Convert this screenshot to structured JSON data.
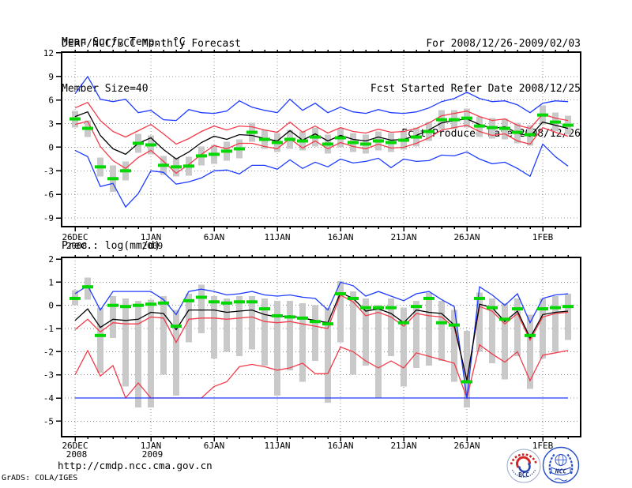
{
  "header": {
    "title": "DERF/NCC/BCC Monthly Forecast",
    "member_size": "Member Size=40",
    "for_range": "For 2008/12/26-2009/02/03",
    "fcst_started": "Fcst Started Refer Date 2008/12/25",
    "fcst_produced": "Fcst Produced Date 2008/12/26"
  },
  "footer": {
    "url": "http://cmdp.ncc.cma.gov.cn",
    "grads_credit": "GrADS: COLA/IGES",
    "logos": {
      "bcc_text": "BCC",
      "ncc_text": "NCC"
    }
  },
  "colors": {
    "max_min": "#1e3cff",
    "percentile": "#f23c4a",
    "ensemble_mean": "#000000",
    "observation": "#00d800",
    "spread_bar": "#c9c9c9",
    "grid": "#909090",
    "frame": "#000000",
    "logo_navy": "#1a2f7a",
    "logo_blue": "#2a50c8",
    "logo_red": "#d42525"
  },
  "chart_data": [
    {
      "type": "line",
      "title": "Mean Surf. Temp.: °C",
      "ylabel": "°C",
      "x_range": [
        "2008/12/26",
        "2009/02/03"
      ],
      "n_days": 40,
      "ylim": [
        -10.1,
        12.1
      ],
      "yticks": [
        12,
        9,
        6,
        3,
        0,
        -3,
        -6,
        -9
      ],
      "xticks": [
        {
          "label": "26DEC",
          "sub": "2008",
          "day": 0
        },
        {
          "label": "1JAN",
          "sub": "2009",
          "day": 6
        },
        {
          "label": "6JAN",
          "day": 11
        },
        {
          "label": "11JAN",
          "day": 16
        },
        {
          "label": "16JAN",
          "day": 21
        },
        {
          "label": "21JAN",
          "day": 26
        },
        {
          "label": "26JAN",
          "day": 31
        },
        {
          "label": "1FEB",
          "day": 37
        }
      ],
      "series": {
        "blue_max": [
          6.8,
          9.0,
          6.1,
          5.8,
          6.1,
          4.4,
          4.7,
          3.5,
          3.4,
          4.8,
          4.4,
          4.3,
          4.6,
          5.9,
          5.1,
          4.7,
          4.4,
          6.1,
          4.7,
          5.6,
          4.4,
          5.1,
          4.5,
          4.3,
          4.8,
          4.4,
          4.3,
          4.5,
          5.0,
          5.8,
          6.2,
          7.0,
          6.2,
          5.8,
          5.9,
          5.4,
          4.4,
          5.6,
          5.9,
          5.8
        ],
        "red_upper": [
          5.0,
          5.7,
          3.4,
          2.0,
          1.3,
          2.1,
          2.9,
          1.7,
          0.4,
          1.1,
          2.0,
          2.7,
          2.2,
          2.7,
          2.6,
          2.2,
          1.9,
          3.2,
          1.9,
          2.7,
          1.8,
          2.5,
          2.0,
          1.8,
          2.3,
          1.9,
          2.0,
          2.4,
          3.1,
          4.0,
          4.3,
          4.6,
          3.9,
          3.4,
          3.6,
          2.8,
          2.4,
          4.2,
          3.7,
          3.4
        ],
        "black_mean": [
          3.9,
          4.5,
          1.5,
          -0.2,
          -0.9,
          0.5,
          1.2,
          -0.3,
          -1.5,
          -0.6,
          0.6,
          1.4,
          1.0,
          1.6,
          1.5,
          1.1,
          0.8,
          2.1,
          0.9,
          1.7,
          0.8,
          1.5,
          1.0,
          0.8,
          1.3,
          0.9,
          1.0,
          1.5,
          2.2,
          3.1,
          3.4,
          3.6,
          2.9,
          2.4,
          2.6,
          1.8,
          1.4,
          3.2,
          2.8,
          2.4
        ],
        "red_lower": [
          2.9,
          3.3,
          0.1,
          -1.7,
          -2.7,
          -1.3,
          -0.4,
          -1.8,
          -3.3,
          -2.2,
          -0.9,
          0.2,
          -0.2,
          0.5,
          0.5,
          0.1,
          -0.2,
          1.1,
          -0.1,
          0.8,
          -0.2,
          0.6,
          0.1,
          -0.2,
          0.4,
          -0.1,
          0.0,
          0.5,
          1.2,
          2.2,
          2.5,
          2.8,
          2.0,
          1.5,
          1.7,
          0.8,
          0.4,
          2.5,
          1.9,
          1.4
        ],
        "blue_min": [
          -0.4,
          -1.2,
          -5.0,
          -4.6,
          -7.6,
          -5.9,
          -3.0,
          -3.2,
          -4.7,
          -4.4,
          -3.9,
          -3.0,
          -2.9,
          -3.4,
          -2.3,
          -2.3,
          -2.8,
          -1.6,
          -2.7,
          -1.9,
          -2.5,
          -1.5,
          -2.0,
          -1.8,
          -1.4,
          -2.6,
          -1.5,
          -1.8,
          -1.7,
          -1.0,
          -1.1,
          -0.6,
          -1.5,
          -2.1,
          -1.9,
          -2.7,
          -3.7,
          0.4,
          -1.2,
          -2.4
        ]
      },
      "observation": [
        3.6,
        2.4,
        -2.5,
        -4.0,
        -3.0,
        0.5,
        0.3,
        -2.3,
        -2.5,
        -2.4,
        -1.1,
        -0.9,
        -0.5,
        -0.2,
        1.9,
        1.0,
        0.6,
        1.0,
        0.8,
        1.3,
        0.4,
        1.2,
        0.6,
        0.4,
        0.8,
        0.6,
        0.9,
        1.3,
        2.0,
        3.5,
        3.5,
        3.7,
        2.7,
        2.5,
        2.4,
        1.9,
        1.6,
        4.1,
        3.2,
        2.8
      ],
      "spread_bars": {
        "top": [
          4.6,
          3.4,
          -1.3,
          -2.3,
          -1.8,
          1.7,
          1.5,
          -1.1,
          -1.3,
          -1.2,
          0.1,
          0.3,
          0.7,
          1.0,
          3.1,
          2.2,
          1.8,
          2.2,
          2.0,
          2.5,
          1.6,
          2.4,
          1.8,
          1.6,
          2.0,
          1.8,
          2.1,
          2.5,
          3.2,
          4.7,
          4.7,
          4.9,
          3.9,
          3.7,
          3.6,
          3.1,
          2.8,
          5.3,
          4.4,
          4.0
        ],
        "bottom": [
          2.5,
          1.3,
          -3.7,
          -5.7,
          -4.2,
          -0.7,
          -0.9,
          -3.5,
          -3.7,
          -3.6,
          -2.3,
          -2.1,
          -1.7,
          -1.4,
          0.7,
          -0.2,
          -0.6,
          -0.2,
          -0.4,
          0.1,
          -0.8,
          0.0,
          -0.6,
          -0.8,
          -0.4,
          -0.6,
          -0.3,
          0.1,
          0.8,
          2.3,
          2.3,
          2.5,
          1.3,
          1.1,
          1.0,
          0.5,
          0.2,
          2.9,
          2.0,
          1.6
        ]
      }
    },
    {
      "type": "line",
      "title": "Prec.: log(mm/d)",
      "ylabel": "log(mm/d)",
      "x_range": [
        "2008/12/26",
        "2009/02/03"
      ],
      "n_days": 40,
      "ylim": [
        -5.67,
        2.07
      ],
      "yticks": [
        2,
        1,
        0,
        -1,
        -2,
        -3,
        -4,
        -5
      ],
      "xticks": [
        {
          "label": "26DEC",
          "sub": "2008",
          "day": 0
        },
        {
          "label": "1JAN",
          "sub": "2009",
          "day": 6
        },
        {
          "label": "6JAN",
          "day": 11
        },
        {
          "label": "11JAN",
          "day": 16
        },
        {
          "label": "16JAN",
          "day": 21
        },
        {
          "label": "21JAN",
          "day": 26
        },
        {
          "label": "26JAN",
          "day": 31
        },
        {
          "label": "1FEB",
          "day": 37
        }
      ],
      "series": {
        "blue_max": [
          0.5,
          0.85,
          -0.2,
          0.6,
          0.6,
          0.6,
          0.6,
          0.25,
          -0.4,
          0.6,
          0.7,
          0.6,
          0.45,
          0.5,
          0.6,
          0.45,
          0.4,
          0.45,
          0.35,
          0.3,
          -0.2,
          1.0,
          0.85,
          0.4,
          0.6,
          0.4,
          0.2,
          0.5,
          0.6,
          0.25,
          -0.05,
          -4.0,
          0.8,
          0.45,
          0.0,
          0.5,
          -0.75,
          0.3,
          0.45,
          0.5
        ],
        "black_mean": [
          -0.65,
          -0.15,
          -0.95,
          -0.6,
          -0.65,
          -0.6,
          -0.3,
          -0.35,
          -1.05,
          -0.2,
          -0.2,
          -0.2,
          -0.3,
          -0.25,
          -0.2,
          -0.4,
          -0.5,
          -0.45,
          -0.55,
          -0.65,
          -0.75,
          0.55,
          0.3,
          -0.25,
          -0.15,
          -0.35,
          -0.75,
          -0.2,
          -0.3,
          -0.35,
          -0.85,
          -3.25,
          0.05,
          -0.1,
          -0.7,
          -0.25,
          -1.4,
          -0.4,
          -0.3,
          -0.25
        ],
        "red_upper": [
          -1.05,
          -0.6,
          -1.15,
          -0.75,
          -0.8,
          -0.8,
          -0.5,
          -0.55,
          -1.6,
          -0.6,
          -0.55,
          -0.55,
          -0.6,
          -0.55,
          -0.5,
          -0.7,
          -0.75,
          -0.7,
          -0.8,
          -0.9,
          -1.0,
          0.45,
          0.15,
          -0.45,
          -0.3,
          -0.5,
          -0.9,
          -0.35,
          -0.45,
          -0.5,
          -0.95,
          -3.2,
          -0.05,
          -0.25,
          -0.8,
          -0.35,
          -1.5,
          -0.5,
          -0.35,
          -0.3
        ],
        "red_lower": [
          -3.0,
          -1.95,
          -3.05,
          -2.6,
          -4.0,
          -3.35,
          -4.0,
          -4.0,
          -4.0,
          -4.0,
          -4.0,
          -3.5,
          -3.3,
          -2.65,
          -2.55,
          -2.65,
          -2.8,
          -2.7,
          -2.5,
          -2.95,
          -2.95,
          -1.8,
          -2.0,
          -2.4,
          -2.7,
          -2.4,
          -2.7,
          -2.05,
          -2.2,
          -2.35,
          -2.5,
          -4.0,
          -1.7,
          -2.1,
          -2.45,
          -2.0,
          -3.25,
          -2.15,
          -2.05,
          -1.95
        ],
        "blue_min": [
          -4.0,
          -4.0,
          -4.0,
          -4.0,
          -4.0,
          -4.0,
          -4.0,
          -4.0,
          -4.0,
          -4.0,
          -4.0,
          -4.0,
          -4.0,
          -4.0,
          -4.0,
          -4.0,
          -4.0,
          -4.0,
          -4.0,
          -4.0,
          -4.0,
          -4.0,
          -4.0,
          -4.0,
          -4.0,
          -4.0,
          -4.0,
          -4.0,
          -4.0,
          -4.0,
          -4.0,
          -4.0,
          -4.0,
          -4.0,
          -4.0,
          -4.0,
          -4.0,
          -4.0,
          -4.0,
          -4.0
        ]
      },
      "observation": [
        0.3,
        0.8,
        -1.3,
        0.0,
        -0.05,
        0.0,
        0.05,
        0.1,
        -0.9,
        0.2,
        0.35,
        0.15,
        0.1,
        0.15,
        0.15,
        -0.15,
        -0.45,
        -0.5,
        -0.55,
        -0.7,
        -0.8,
        0.5,
        0.3,
        -0.1,
        -0.1,
        -0.1,
        -0.75,
        -0.05,
        0.3,
        -0.75,
        -0.85,
        -3.3,
        0.3,
        -0.1,
        -0.6,
        -0.15,
        -1.3,
        -0.15,
        -0.1,
        -0.05
      ],
      "spread_bars": {
        "top": [
          0.65,
          1.2,
          -0.1,
          0.4,
          0.3,
          0.2,
          0.25,
          0.4,
          -0.2,
          0.5,
          0.9,
          0.4,
          0.3,
          0.4,
          0.4,
          0.3,
          0.2,
          0.2,
          0.1,
          0.0,
          -0.1,
          1.05,
          0.6,
          0.3,
          0.0,
          0.3,
          -0.1,
          0.2,
          0.55,
          0.2,
          -0.2,
          -1.1,
          0.55,
          0.3,
          0.1,
          0.3,
          -0.4,
          0.3,
          0.4,
          0.5
        ],
        "bottom": [
          0.0,
          0.25,
          -2.9,
          -1.4,
          -3.5,
          -4.4,
          -4.4,
          -3.0,
          -3.9,
          -1.6,
          -1.2,
          -2.3,
          -2.0,
          -2.2,
          -1.9,
          -2.6,
          -3.9,
          -2.8,
          -3.3,
          -2.4,
          -4.2,
          -1.6,
          -3.0,
          -2.6,
          -4.0,
          -2.2,
          -3.5,
          -2.7,
          -2.6,
          -2.4,
          -3.3,
          -4.4,
          -2.0,
          -2.5,
          -3.2,
          -2.2,
          -3.6,
          -2.3,
          -2.0,
          -1.5
        ]
      }
    }
  ]
}
